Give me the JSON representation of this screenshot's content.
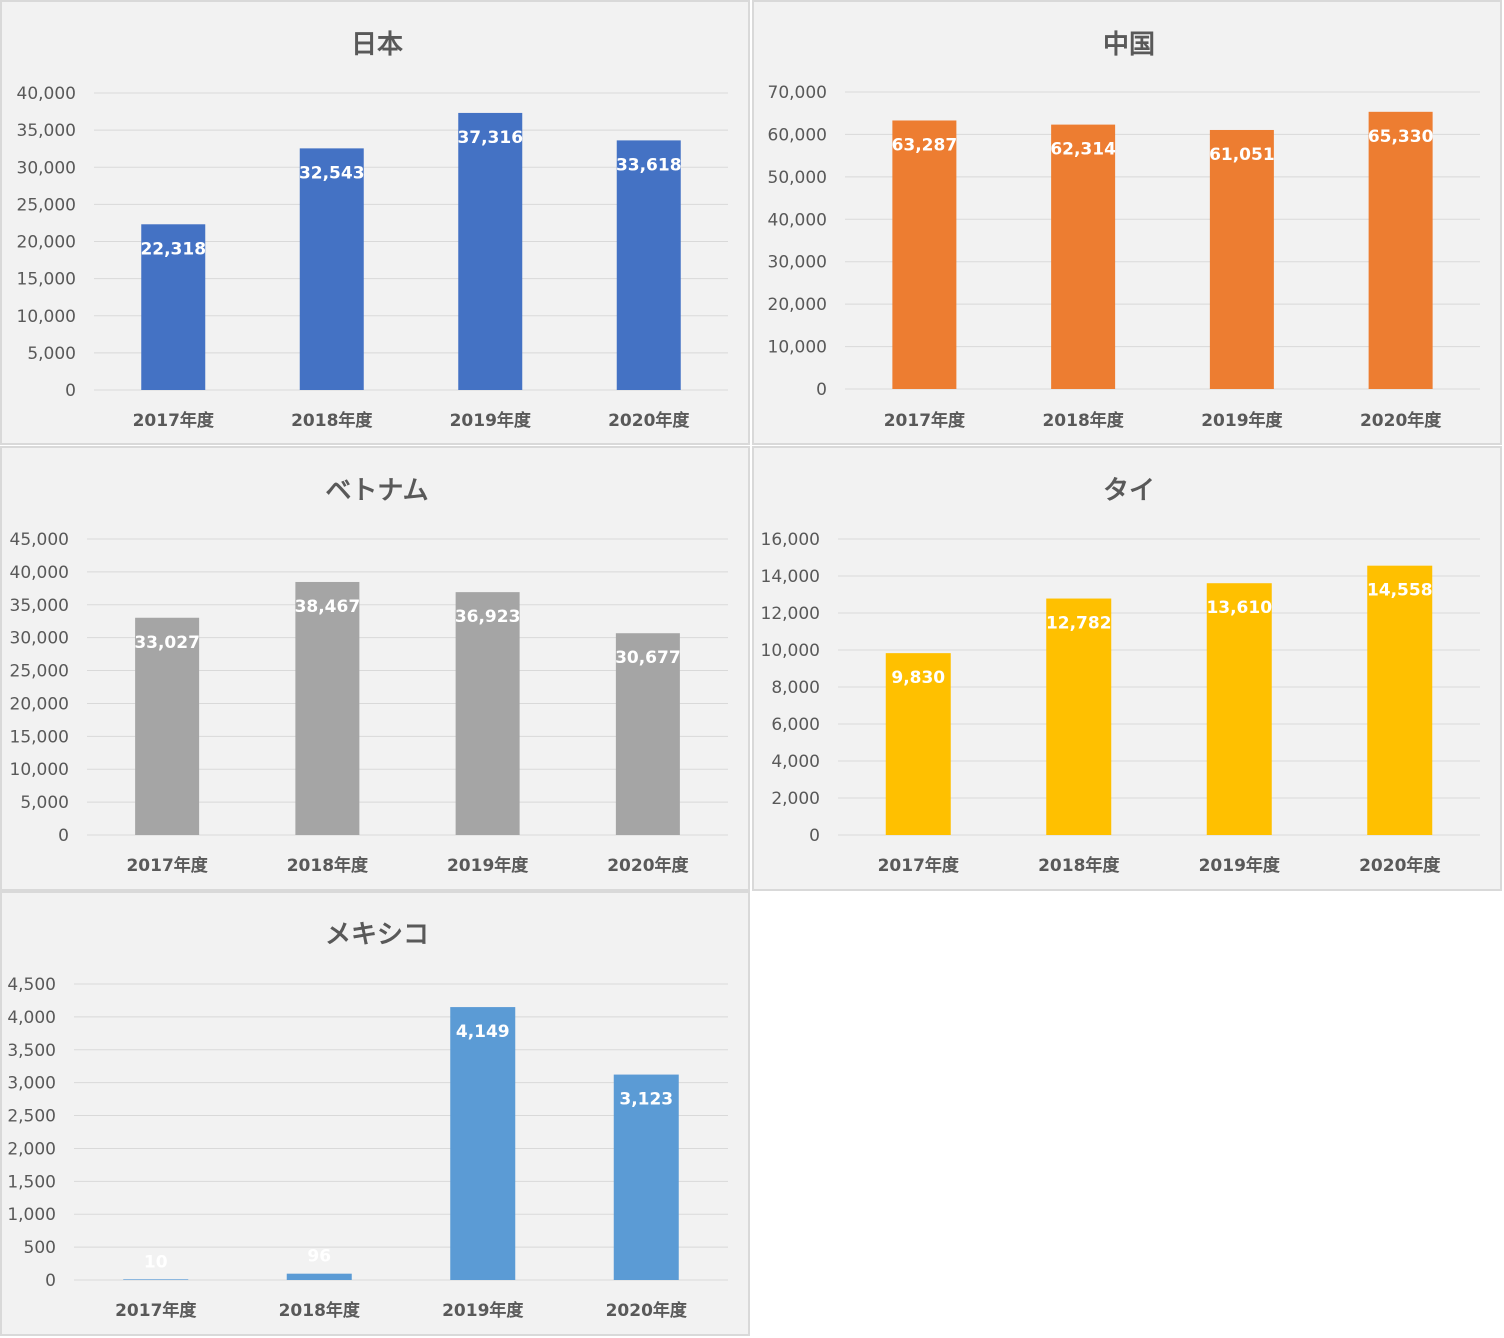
{
  "chart_data": [
    {
      "type": "bar",
      "title": "日本",
      "categories": [
        "2017年度",
        "2018年度",
        "2019年度",
        "2020年度"
      ],
      "values": [
        22318,
        32543,
        37316,
        33618
      ],
      "data_labels": [
        "22,318",
        "32,543",
        "37,316",
        "33,618"
      ],
      "ylim": [
        0,
        40000
      ],
      "yticks": [
        "0",
        "5,000",
        "10,000",
        "15,000",
        "20,000",
        "25,000",
        "30,000",
        "35,000",
        "40,000"
      ],
      "color": "#4472c4",
      "grid": true
    },
    {
      "type": "bar",
      "title": "中国",
      "categories": [
        "2017年度",
        "2018年度",
        "2019年度",
        "2020年度"
      ],
      "values": [
        63287,
        62314,
        61051,
        65330
      ],
      "data_labels": [
        "63,287",
        "62,314",
        "61,051",
        "65,330"
      ],
      "ylim": [
        0,
        70000
      ],
      "yticks": [
        "0",
        "10,000",
        "20,000",
        "30,000",
        "40,000",
        "50,000",
        "60,000",
        "70,000"
      ],
      "color": "#ed7d31",
      "grid": true
    },
    {
      "type": "bar",
      "title": "ベトナム",
      "categories": [
        "2017年度",
        "2018年度",
        "2019年度",
        "2020年度"
      ],
      "values": [
        33027,
        38467,
        36923,
        30677
      ],
      "data_labels": [
        "33,027",
        "38,467",
        "36,923",
        "30,677"
      ],
      "ylim": [
        0,
        45000
      ],
      "yticks": [
        "0",
        "5,000",
        "10,000",
        "15,000",
        "20,000",
        "25,000",
        "30,000",
        "35,000",
        "40,000",
        "45,000"
      ],
      "color": "#a5a5a5",
      "grid": true
    },
    {
      "type": "bar",
      "title": "タイ",
      "categories": [
        "2017年度",
        "2018年度",
        "2019年度",
        "2020年度"
      ],
      "values": [
        9830,
        12782,
        13610,
        14558
      ],
      "data_labels": [
        "9,830",
        "12,782",
        "13,610",
        "14,558"
      ],
      "ylim": [
        0,
        16000
      ],
      "yticks": [
        "0",
        "2,000",
        "4,000",
        "6,000",
        "8,000",
        "10,000",
        "12,000",
        "14,000",
        "16,000"
      ],
      "color": "#ffc000",
      "grid": true
    },
    {
      "type": "bar",
      "title": "メキシコ",
      "categories": [
        "2017年度",
        "2018年度",
        "2019年度",
        "2020年度"
      ],
      "values": [
        10,
        96,
        4149,
        3123
      ],
      "data_labels": [
        "10",
        "96",
        "4,149",
        "3,123"
      ],
      "ylim": [
        0,
        4500
      ],
      "yticks": [
        "0",
        "500",
        "1,000",
        "1,500",
        "2,000",
        "2,500",
        "3,000",
        "3,500",
        "4,000",
        "4,500"
      ],
      "color": "#5b9bd5",
      "grid": true
    }
  ]
}
